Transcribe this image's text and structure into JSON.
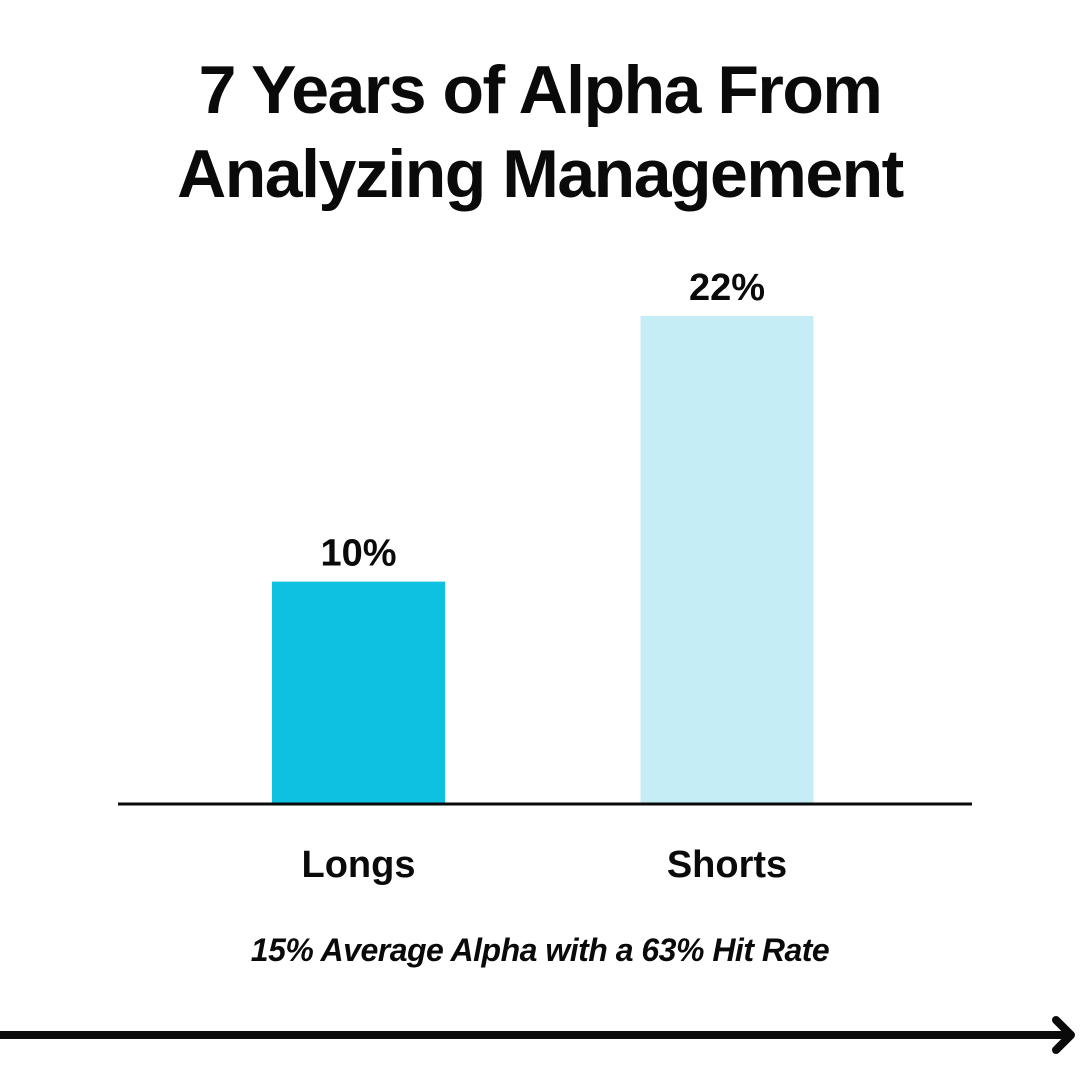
{
  "title": {
    "line1": "7 Years of Alpha From",
    "line2": "Analyzing Management"
  },
  "subtitle": "15% Average Alpha with a 63% Hit Rate",
  "chart_data": {
    "type": "bar",
    "categories": [
      "Longs",
      "Shorts"
    ],
    "values": [
      10,
      22
    ],
    "data_labels": [
      "10%",
      "22%"
    ],
    "bar_colors": [
      "#0ec1e0",
      "#c4edf6"
    ],
    "unit": "%",
    "ylim": [
      0,
      22
    ],
    "grid": false,
    "legend": "none"
  },
  "colors": {
    "text": "#0a0a0a",
    "axis": "#0a0a0a",
    "arrow": "#0a0a0a"
  },
  "icons": {
    "bottom_arrow": "right-arrow-icon"
  }
}
